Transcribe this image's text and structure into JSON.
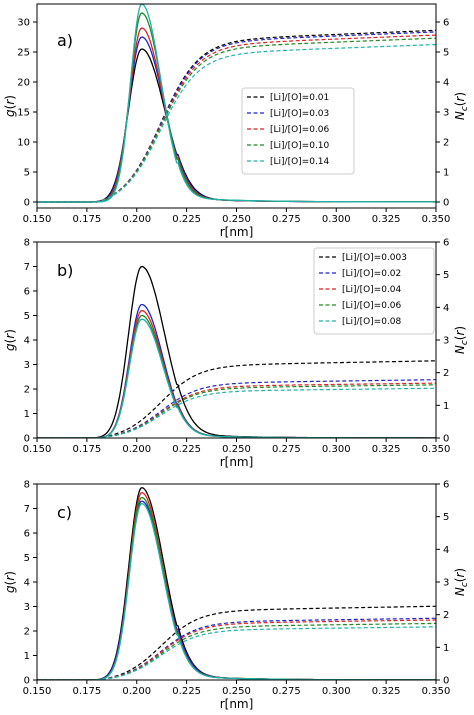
{
  "chart_data": [
    {
      "panel": "a)",
      "type": "line",
      "xlabel": "r[nm]",
      "ylabel": "g(r)",
      "y2label": "N_c(r)",
      "xlim": [
        0.15,
        0.35
      ],
      "ylim": [
        -1,
        33
      ],
      "y2lim": [
        -0.2,
        6.6
      ],
      "xticks": [
        "0.150",
        "0.175",
        "0.200",
        "0.225",
        "0.250",
        "0.275",
        "0.300",
        "0.325",
        "0.350"
      ],
      "yticks": [
        "0",
        "5",
        "10",
        "15",
        "20",
        "25",
        "30"
      ],
      "y2ticks": [
        "0",
        "1",
        "2",
        "3",
        "4",
        "5",
        "6"
      ],
      "legend_position": "center-right",
      "series": [
        {
          "name": "[Li]/[O]=0.01",
          "color": "#000000",
          "g_peak": 25.5,
          "g_width": 0.013,
          "nc_plateau": 5.45
        },
        {
          "name": "[Li]/[O]=0.03",
          "color": "#2222cc",
          "g_peak": 27.5,
          "g_width": 0.0125,
          "nc_plateau": 5.4
        },
        {
          "name": "[Li]/[O]=0.06",
          "color": "#dd2222",
          "g_peak": 29.0,
          "g_width": 0.012,
          "nc_plateau": 5.3
        },
        {
          "name": "[Li]/[O]=0.10",
          "color": "#228822",
          "g_peak": 31.5,
          "g_width": 0.0115,
          "nc_plateau": 5.2
        },
        {
          "name": "[Li]/[O]=0.14",
          "color": "#20b2aa",
          "g_peak": 33.0,
          "g_width": 0.011,
          "nc_plateau": 5.0
        }
      ]
    },
    {
      "panel": "b)",
      "type": "line",
      "xlabel": "r[nm]",
      "ylabel": "g(r)",
      "y2label": "N_c(r)",
      "xlim": [
        0.15,
        0.35
      ],
      "ylim": [
        0,
        8
      ],
      "y2lim": [
        0,
        6
      ],
      "xticks": [
        "0.150",
        "0.175",
        "0.200",
        "0.225",
        "0.250",
        "0.275",
        "0.300",
        "0.325",
        "0.350"
      ],
      "yticks": [
        "0",
        "1",
        "2",
        "3",
        "4",
        "5",
        "6",
        "7",
        "8"
      ],
      "y2ticks": [
        "0",
        "1",
        "2",
        "3",
        "4",
        "5",
        "6"
      ],
      "legend_position": "top-right",
      "series": [
        {
          "name": "[Li]/[O]=0.003",
          "color": "#000000",
          "g_peak": 7.0,
          "g_width": 0.013,
          "nc_plateau": 2.25
        },
        {
          "name": "[Li]/[O]=0.02",
          "color": "#2222cc",
          "g_peak": 5.45,
          "g_width": 0.012,
          "nc_plateau": 1.7
        },
        {
          "name": "[Li]/[O]=0.04",
          "color": "#dd2222",
          "g_peak": 5.2,
          "g_width": 0.012,
          "nc_plateau": 1.6
        },
        {
          "name": "[Li]/[O]=0.06",
          "color": "#228822",
          "g_peak": 5.0,
          "g_width": 0.012,
          "nc_plateau": 1.55
        },
        {
          "name": "[Li]/[O]=0.08",
          "color": "#20b2aa",
          "g_peak": 4.85,
          "g_width": 0.012,
          "nc_plateau": 1.45
        }
      ]
    },
    {
      "panel": "c)",
      "type": "line",
      "xlabel": "r[nm]",
      "ylabel": "g(r)",
      "y2label": "N_c(r)",
      "xlim": [
        0.15,
        0.35
      ],
      "ylim": [
        0,
        8
      ],
      "y2lim": [
        0,
        6
      ],
      "xticks": [
        "0.150",
        "0.175",
        "0.200",
        "0.225",
        "0.250",
        "0.275",
        "0.300",
        "0.325",
        "0.350"
      ],
      "yticks": [
        "0",
        "1",
        "2",
        "3",
        "4",
        "5",
        "6",
        "7",
        "8"
      ],
      "y2ticks": [
        "0",
        "1",
        "2",
        "3",
        "4",
        "5",
        "6"
      ],
      "legend_position": "none",
      "series": [
        {
          "name": "",
          "color": "#000000",
          "g_peak": 7.85,
          "g_width": 0.0125,
          "nc_plateau": 2.15
        },
        {
          "name": "",
          "color": "#2222cc",
          "g_peak": 7.3,
          "g_width": 0.0125,
          "nc_plateau": 1.8
        },
        {
          "name": "",
          "color": "#dd2222",
          "g_peak": 7.65,
          "g_width": 0.012,
          "nc_plateau": 1.75
        },
        {
          "name": "",
          "color": "#228822",
          "g_peak": 7.45,
          "g_width": 0.012,
          "nc_plateau": 1.65
        },
        {
          "name": "",
          "color": "#20b2aa",
          "g_peak": 7.2,
          "g_width": 0.012,
          "nc_plateau": 1.55
        }
      ]
    }
  ]
}
